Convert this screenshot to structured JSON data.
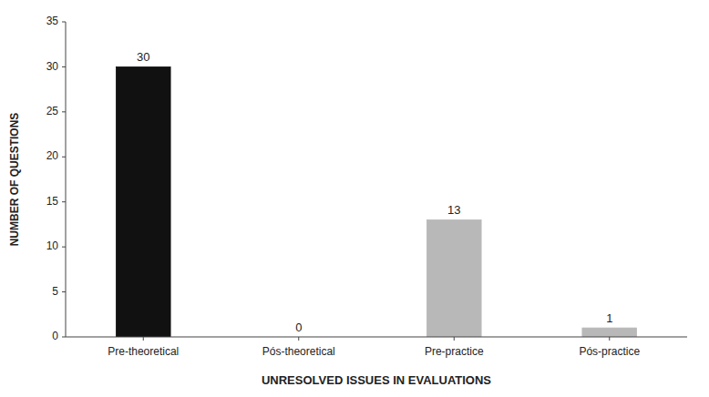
{
  "chart_data": {
    "type": "bar",
    "categories": [
      "Pre-theoretical",
      "Pós-theoretical",
      "Pre-practice",
      "Pós-practice"
    ],
    "values": [
      30,
      0,
      13,
      1
    ],
    "colors": [
      "#111111",
      "#111111",
      "#b8b8b8",
      "#b8b8b8"
    ],
    "xlabel": "UNRESOLVED ISSUES IN EVALUATIONS",
    "ylabel": "NUMBER OF QUESTIONS",
    "ylim": [
      0,
      35
    ],
    "yticks": [
      0,
      5,
      10,
      15,
      20,
      25,
      30,
      35
    ],
    "data_labels": true,
    "grid": false
  }
}
